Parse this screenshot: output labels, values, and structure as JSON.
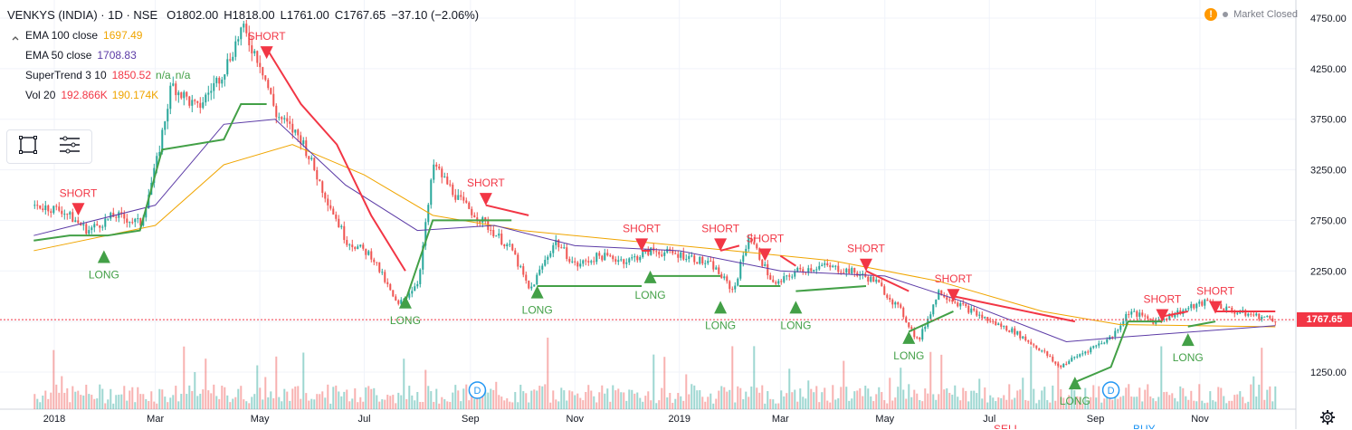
{
  "header": {
    "symbol": "VENKYS (INDIA) · 1D · NSE",
    "open": "O1802.00",
    "high": "H1818.00",
    "low": "L1761.00",
    "close": "C1767.65",
    "change": "−37.10 (−2.06%)"
  },
  "indicators": [
    {
      "name": "EMA 100 close",
      "value": "1697.49",
      "color": "#f0a500"
    },
    {
      "name": "EMA 50 close",
      "value": "1708.83",
      "color": "#5c3ba6"
    },
    {
      "name": "SuperTrend 3 10",
      "value": "1850.52",
      "value2": "n/a",
      "value3": "n/a",
      "color": "#f23645",
      "color2": "#43a047"
    },
    {
      "name": "Vol 20",
      "value": "192.866K",
      "value2": "190.174K",
      "color": "#f23645",
      "color2": "#f0a500"
    }
  ],
  "status": {
    "text": "Market Closed",
    "warning_icon": "!"
  },
  "price_axis": {
    "ticks": [
      "4750.00",
      "4250.00",
      "3750.00",
      "3250.00",
      "2750.00",
      "2250.00",
      "1750.00",
      "1250.00"
    ],
    "current_price": "1767.65"
  },
  "time_axis": {
    "ticks": [
      "2018",
      "Mar",
      "May",
      "Jul",
      "Sep",
      "Nov",
      "2019",
      "Mar",
      "May",
      "Jul",
      "Sep",
      "Nov"
    ]
  },
  "signal_labels": {
    "short": "SHORT",
    "long": "LONG"
  },
  "events": [
    {
      "label": "D"
    },
    {
      "label": "D"
    }
  ],
  "partial_labels": {
    "sell": "SELL",
    "buy": "BUY"
  },
  "colors": {
    "up": "#26a69a",
    "down": "#ef5350",
    "short": "#f23645",
    "long": "#43a047",
    "ema100": "#f0a500",
    "ema50": "#5c3ba6",
    "grid": "#f0f3fa"
  },
  "chart_data": {
    "type": "candlestick",
    "ylim": [
      1000,
      4850
    ],
    "price_ticks": [
      4750,
      4250,
      3750,
      3250,
      2750,
      2250,
      1750,
      1250
    ],
    "current_price": 1767.65,
    "close_path": [
      [
        "2017-12-20",
        2900
      ],
      [
        "2018-01-05",
        2850
      ],
      [
        "2018-01-20",
        2650
      ],
      [
        "2018-02-05",
        2800
      ],
      [
        "2018-02-20",
        2720
      ],
      [
        "2018-03-01",
        3300
      ],
      [
        "2018-03-10",
        4100
      ],
      [
        "2018-03-25",
        3850
      ],
      [
        "2018-04-10",
        4250
      ],
      [
        "2018-04-20",
        4650
      ],
      [
        "2018-05-01",
        4300
      ],
      [
        "2018-05-10",
        3800
      ],
      [
        "2018-05-25",
        3550
      ],
      [
        "2018-06-05",
        3100
      ],
      [
        "2018-06-20",
        2550
      ],
      [
        "2018-07-05",
        2400
      ],
      [
        "2018-07-20",
        1900
      ],
      [
        "2018-08-01",
        2150
      ],
      [
        "2018-08-10",
        3300
      ],
      [
        "2018-08-25",
        2950
      ],
      [
        "2018-09-10",
        2700
      ],
      [
        "2018-09-25",
        2450
      ],
      [
        "2018-10-05",
        2050
      ],
      [
        "2018-10-20",
        2550
      ],
      [
        "2018-11-01",
        2300
      ],
      [
        "2018-11-15",
        2400
      ],
      [
        "2018-12-01",
        2350
      ],
      [
        "2018-12-15",
        2450
      ],
      [
        "2019-01-05",
        2400
      ],
      [
        "2019-01-20",
        2300
      ],
      [
        "2019-02-01",
        2050
      ],
      [
        "2019-02-10",
        2600
      ],
      [
        "2019-02-25",
        2100
      ],
      [
        "2019-03-10",
        2250
      ],
      [
        "2019-03-25",
        2300
      ],
      [
        "2019-04-10",
        2250
      ],
      [
        "2019-04-25",
        2150
      ],
      [
        "2019-05-10",
        1850
      ],
      [
        "2019-05-20",
        1550
      ],
      [
        "2019-06-01",
        2050
      ],
      [
        "2019-06-15",
        1900
      ],
      [
        "2019-07-01",
        1750
      ],
      [
        "2019-07-15",
        1650
      ],
      [
        "2019-08-01",
        1450
      ],
      [
        "2019-08-10",
        1300
      ],
      [
        "2019-08-25",
        1450
      ],
      [
        "2019-09-10",
        1600
      ],
      [
        "2019-09-20",
        1850
      ],
      [
        "2019-10-05",
        1750
      ],
      [
        "2019-10-20",
        1850
      ],
      [
        "2019-11-05",
        1950
      ],
      [
        "2019-11-20",
        1850
      ],
      [
        "2019-12-05",
        1800
      ],
      [
        "2019-12-15",
        1767.65
      ]
    ],
    "ema100_path": [
      [
        "2017-12-20",
        2450
      ],
      [
        "2018-03-01",
        2700
      ],
      [
        "2018-04-10",
        3300
      ],
      [
        "2018-05-20",
        3500
      ],
      [
        "2018-07-01",
        3200
      ],
      [
        "2018-08-10",
        2800
      ],
      [
        "2018-10-01",
        2650
      ],
      [
        "2018-12-01",
        2550
      ],
      [
        "2019-02-01",
        2450
      ],
      [
        "2019-04-01",
        2350
      ],
      [
        "2019-06-01",
        2150
      ],
      [
        "2019-08-01",
        1850
      ],
      [
        "2019-09-15",
        1720
      ],
      [
        "2019-12-15",
        1697.49
      ]
    ],
    "ema50_path": [
      [
        "2017-12-20",
        2600
      ],
      [
        "2018-03-01",
        2900
      ],
      [
        "2018-04-10",
        3700
      ],
      [
        "2018-05-10",
        3750
      ],
      [
        "2018-06-20",
        3100
      ],
      [
        "2018-08-01",
        2650
      ],
      [
        "2018-09-15",
        2700
      ],
      [
        "2018-11-01",
        2500
      ],
      [
        "2019-01-01",
        2450
      ],
      [
        "2019-03-01",
        2250
      ],
      [
        "2019-05-01",
        2200
      ],
      [
        "2019-06-15",
        1950
      ],
      [
        "2019-08-15",
        1550
      ],
      [
        "2019-09-20",
        1600
      ],
      [
        "2019-12-15",
        1708.83
      ]
    ],
    "supertrend_long_segments": [
      [
        [
          "2017-12-20",
          2550
        ],
        [
          "2018-01-10",
          2600
        ],
        [
          "2018-02-01",
          2600
        ],
        [
          "2018-02-20",
          2650
        ],
        [
          "2018-03-05",
          3450
        ],
        [
          "2018-04-10",
          3550
        ],
        [
          "2018-04-20",
          3900
        ],
        [
          "2018-05-05",
          3900
        ]
      ],
      [
        [
          "2018-07-25",
          1950
        ],
        [
          "2018-08-10",
          2750
        ],
        [
          "2018-09-25",
          2750
        ]
      ],
      [
        [
          "2018-10-10",
          2100
        ],
        [
          "2018-12-10",
          2100
        ]
      ],
      [
        [
          "2018-12-15",
          2200
        ],
        [
          "2019-01-25",
          2200
        ]
      ],
      [
        [
          "2019-02-05",
          2100
        ],
        [
          "2019-03-01",
          2100
        ]
      ],
      [
        [
          "2019-03-10",
          2050
        ],
        [
          "2019-04-20",
          2100
        ]
      ],
      [
        [
          "2019-05-15",
          1650
        ],
        [
          "2019-06-10",
          1850
        ]
      ],
      [
        [
          "2019-08-20",
          1150
        ],
        [
          "2019-09-10",
          1300
        ],
        [
          "2019-09-20",
          1750
        ],
        [
          "2019-10-10",
          1750
        ]
      ],
      [
        [
          "2019-10-25",
          1700
        ],
        [
          "2019-11-10",
          1750
        ]
      ]
    ],
    "supertrend_short_segments": [
      [
        [
          "2018-05-05",
          4450
        ],
        [
          "2018-05-25",
          3900
        ],
        [
          "2018-06-15",
          3500
        ],
        [
          "2018-07-05",
          2800
        ],
        [
          "2018-07-25",
          2250
        ]
      ],
      [
        [
          "2018-09-10",
          2900
        ],
        [
          "2018-10-05",
          2800
        ]
      ],
      [
        [
          "2018-12-10",
          2450
        ],
        [
          "2018-12-15",
          2450
        ]
      ],
      [
        [
          "2019-01-25",
          2450
        ],
        [
          "2019-02-05",
          2500
        ]
      ],
      [
        [
          "2019-03-01",
          2400
        ],
        [
          "2019-03-10",
          2300
        ]
      ],
      [
        [
          "2019-04-20",
          2250
        ],
        [
          "2019-05-15",
          2050
        ]
      ],
      [
        [
          "2019-06-10",
          2000
        ],
        [
          "2019-08-20",
          1750
        ]
      ],
      [
        [
          "2019-10-10",
          1800
        ],
        [
          "2019-10-25",
          1850
        ]
      ],
      [
        [
          "2019-11-10",
          1850
        ],
        [
          "2019-12-15",
          1850
        ]
      ]
    ],
    "short_signals": [
      [
        "2018-01-15",
        2850
      ],
      [
        "2018-05-05",
        4400
      ],
      [
        "2018-09-10",
        2950
      ],
      [
        "2018-12-10",
        2500
      ],
      [
        "2019-01-25",
        2500
      ],
      [
        "2019-02-20",
        2400
      ],
      [
        "2019-04-20",
        2300
      ],
      [
        "2019-06-10",
        2000
      ],
      [
        "2019-10-10",
        1800
      ],
      [
        "2019-11-10",
        1880
      ]
    ],
    "long_signals": [
      [
        "2018-01-30",
        2400
      ],
      [
        "2018-07-25",
        1950
      ],
      [
        "2018-10-10",
        2050
      ],
      [
        "2018-12-15",
        2200
      ],
      [
        "2019-01-25",
        1900
      ],
      [
        "2019-03-10",
        1900
      ],
      [
        "2019-05-15",
        1600
      ],
      [
        "2019-08-20",
        1150
      ],
      [
        "2019-10-25",
        1580
      ]
    ],
    "dividend_events": [
      "2018-09-05",
      "2019-09-10"
    ]
  }
}
